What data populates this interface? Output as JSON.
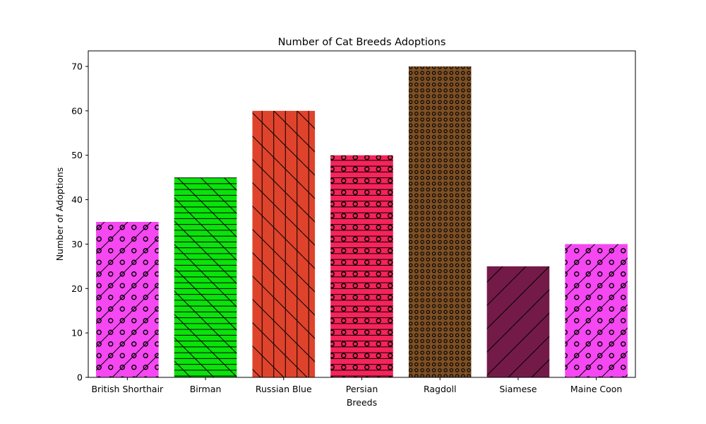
{
  "chart_data": {
    "type": "bar",
    "title": "Number of Cat Breeds Adoptions",
    "xlabel": "Breeds",
    "ylabel": "Number of Adoptions",
    "categories": [
      "British Shorthair",
      "Birman",
      "Russian Blue",
      "Persian",
      "Ragdoll",
      "Siamese",
      "Maine Coon"
    ],
    "values": [
      35,
      45,
      60,
      50,
      70,
      25,
      30
    ],
    "colors": [
      "#f547f2",
      "#0ae30a",
      "#e0432c",
      "#f5245a",
      "#7d4f24",
      "#741a49",
      "#f547f2"
    ],
    "hatches": [
      "/o",
      "\\-",
      "|\\",
      "-o",
      "o",
      "/",
      "/o"
    ],
    "ylim": [
      0,
      73.5
    ],
    "yticks": [
      0,
      10,
      20,
      30,
      40,
      50,
      60,
      70
    ],
    "grid": false,
    "legend": "none"
  }
}
